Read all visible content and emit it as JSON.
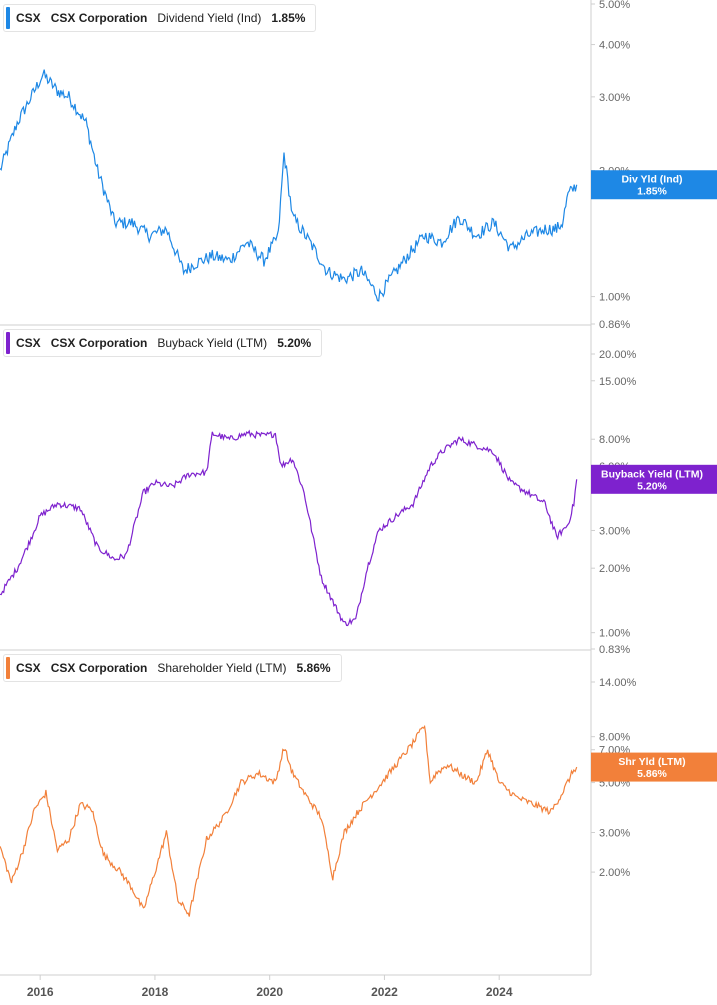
{
  "panels": [
    {
      "ticker": "CSX",
      "company": "CSX Corporation",
      "metric": "Dividend Yield (Ind)",
      "value": "1.85%",
      "color": "#1e88e5",
      "badge": {
        "line1": "Div Yld (Ind)",
        "line2": "1.85%"
      }
    },
    {
      "ticker": "CSX",
      "company": "CSX Corporation",
      "metric": "Buyback Yield (LTM)",
      "value": "5.20%",
      "color": "#7e22ce",
      "badge": {
        "line1": "Buyback Yield (LTM)",
        "line2": "5.20%"
      }
    },
    {
      "ticker": "CSX",
      "company": "CSX Corporation",
      "metric": "Shareholder Yield (LTM)",
      "value": "5.86%",
      "color": "#f2803a",
      "badge": {
        "line1": "Shr Yld (LTM)",
        "line2": "5.86%"
      }
    }
  ],
  "chart_data": [
    {
      "type": "line",
      "title": "Dividend Yield (Ind)",
      "scale": "log",
      "x_range": [
        2015.3,
        2025.6
      ],
      "ylim": [
        0.86,
        5.0
      ],
      "y_ticks": [
        "5.00%",
        "4.00%",
        "3.00%",
        "2.00%",
        "1.00%",
        "0.86%"
      ],
      "y_tick_values": [
        5.0,
        4.0,
        3.0,
        2.0,
        1.0,
        0.86
      ],
      "series": [
        {
          "name": "Div Yld (Ind)",
          "x": [
            2015.3,
            2015.6,
            2015.9,
            2016.05,
            2016.3,
            2016.5,
            2016.8,
            2017.0,
            2017.3,
            2017.6,
            2017.9,
            2018.2,
            2018.5,
            2018.7,
            2019.0,
            2019.3,
            2019.6,
            2019.9,
            2020.15,
            2020.25,
            2020.4,
            2020.7,
            2021.0,
            2021.3,
            2021.6,
            2021.9,
            2022.1,
            2022.4,
            2022.7,
            2023.0,
            2023.3,
            2023.6,
            2023.9,
            2024.2,
            2024.5,
            2024.8,
            2025.0,
            2025.1,
            2025.2,
            2025.35
          ],
          "values": [
            2.0,
            2.6,
            3.1,
            3.4,
            3.1,
            3.0,
            2.6,
            2.0,
            1.5,
            1.5,
            1.4,
            1.45,
            1.15,
            1.2,
            1.25,
            1.22,
            1.35,
            1.22,
            1.4,
            2.2,
            1.55,
            1.35,
            1.15,
            1.1,
            1.15,
            1.0,
            1.1,
            1.25,
            1.4,
            1.35,
            1.55,
            1.4,
            1.5,
            1.3,
            1.4,
            1.45,
            1.45,
            1.5,
            1.75,
            1.85
          ]
        }
      ]
    },
    {
      "type": "line",
      "title": "Buyback Yield (LTM)",
      "scale": "log",
      "x_range": [
        2015.3,
        2025.6
      ],
      "ylim": [
        0.83,
        20.0
      ],
      "y_ticks": [
        "20.00%",
        "15.00%",
        "8.00%",
        "6.00%",
        "3.00%",
        "2.00%",
        "1.00%",
        "0.83%"
      ],
      "y_tick_values": [
        20.0,
        15.0,
        8.0,
        6.0,
        3.0,
        2.0,
        1.0,
        0.83
      ],
      "series": [
        {
          "name": "Buyback Yield (LTM)",
          "x": [
            2015.3,
            2015.6,
            2015.8,
            2016.0,
            2016.3,
            2016.7,
            2017.0,
            2017.3,
            2017.5,
            2017.8,
            2018.0,
            2018.3,
            2018.6,
            2018.9,
            2019.0,
            2019.3,
            2019.6,
            2019.9,
            2020.1,
            2020.2,
            2020.4,
            2020.6,
            2020.9,
            2021.1,
            2021.3,
            2021.5,
            2021.7,
            2021.9,
            2022.2,
            2022.5,
            2022.8,
            2023.0,
            2023.3,
            2023.6,
            2023.9,
            2024.2,
            2024.5,
            2024.8,
            2025.0,
            2025.2,
            2025.3,
            2025.35
          ],
          "values": [
            1.5,
            2.0,
            2.6,
            3.5,
            4.0,
            3.8,
            2.5,
            2.2,
            2.3,
            4.5,
            5.0,
            4.8,
            5.5,
            5.6,
            8.5,
            8.0,
            8.5,
            8.3,
            8.5,
            6.0,
            6.5,
            4.5,
            1.8,
            1.4,
            1.1,
            1.15,
            2.0,
            3.0,
            3.5,
            4.0,
            6.0,
            7.0,
            8.0,
            7.5,
            7.0,
            5.0,
            4.5,
            4.0,
            2.8,
            3.2,
            4.0,
            5.2
          ]
        }
      ]
    },
    {
      "type": "line",
      "title": "Shareholder Yield (LTM)",
      "scale": "log",
      "x_range": [
        2015.3,
        2025.6
      ],
      "ylim": [
        1.2,
        14.0
      ],
      "y_ticks": [
        "14.00%",
        "8.00%",
        "7.00%",
        "5.00%",
        "3.00%",
        "2.00%"
      ],
      "y_tick_values": [
        14.0,
        8.0,
        7.0,
        5.0,
        3.0,
        2.0
      ],
      "x_ticks": [
        "2016",
        "2018",
        "2020",
        "2022",
        "2024"
      ],
      "x_tick_values": [
        2016,
        2018,
        2020,
        2022,
        2024
      ],
      "series": [
        {
          "name": "Shr Yld (LTM)",
          "x": [
            2015.3,
            2015.5,
            2015.7,
            2015.9,
            2016.1,
            2016.3,
            2016.5,
            2016.7,
            2016.9,
            2017.1,
            2017.4,
            2017.6,
            2017.8,
            2018.0,
            2018.2,
            2018.4,
            2018.6,
            2018.9,
            2019.2,
            2019.5,
            2019.8,
            2020.1,
            2020.25,
            2020.4,
            2020.6,
            2020.9,
            2021.1,
            2021.3,
            2021.5,
            2021.7,
            2021.9,
            2022.2,
            2022.5,
            2022.7,
            2022.8,
            2022.9,
            2023.1,
            2023.4,
            2023.6,
            2023.8,
            2024.0,
            2024.3,
            2024.6,
            2024.9,
            2025.1,
            2025.3,
            2025.35
          ],
          "values": [
            2.6,
            1.8,
            2.5,
            3.8,
            4.5,
            2.5,
            2.8,
            4.0,
            3.8,
            2.4,
            2.0,
            1.7,
            1.35,
            2.0,
            3.0,
            1.5,
            1.3,
            2.8,
            3.5,
            5.0,
            5.5,
            5.0,
            7.2,
            5.5,
            4.5,
            3.5,
            1.9,
            3.0,
            3.6,
            4.2,
            4.8,
            6.0,
            7.5,
            9.0,
            5.0,
            5.5,
            6.0,
            5.3,
            5.0,
            7.0,
            5.0,
            4.3,
            4.0,
            3.7,
            4.5,
            5.7,
            5.86
          ]
        }
      ]
    }
  ]
}
